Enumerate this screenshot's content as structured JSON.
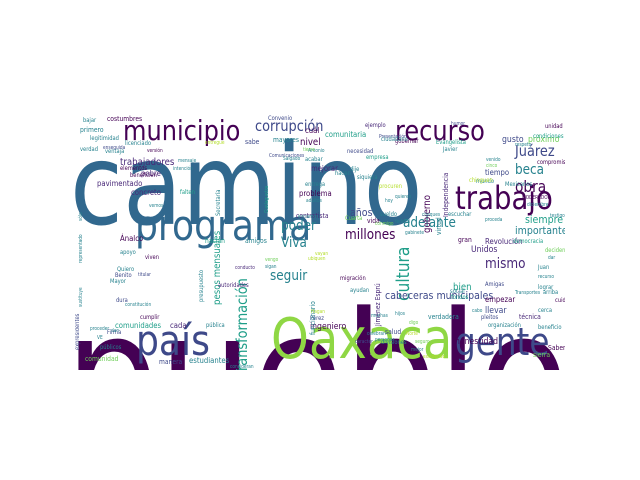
{
  "colors": {
    "dark_purple": "#440154",
    "indigo": "#482878",
    "slate_blue": "#3e4989",
    "blue": "#31688e",
    "teal_blue": "#26828e",
    "teal": "#1f9e89",
    "green": "#35b779",
    "light_green": "#6ece58",
    "lime": "#8fd744",
    "yellow_green": "#b5de2b",
    "yellow": "#fde725"
  },
  "words": [
    {
      "text": "pueblo",
      "color": "dark_purple",
      "vertical": false
    },
    {
      "text": "camino",
      "color": "blue",
      "vertical": false
    },
    {
      "text": "Oaxaca",
      "color": "lime",
      "vertical": false
    },
    {
      "text": "programa",
      "color": "blue",
      "vertical": false
    },
    {
      "text": "país",
      "color": "slate_blue",
      "vertical": false
    },
    {
      "text": "gente",
      "color": "slate_blue",
      "vertical": false
    },
    {
      "text": "recurso",
      "color": "dark_purple",
      "vertical": false
    },
    {
      "text": "municipio",
      "color": "dark_purple",
      "vertical": false
    },
    {
      "text": "trabajo",
      "color": "dark_purple",
      "vertical": false
    },
    {
      "text": "Transformación",
      "color": "teal",
      "vertical": true
    },
    {
      "text": "cultura",
      "color": "teal",
      "vertical": true
    },
    {
      "text": "corrupción",
      "color": "slate_blue",
      "vertical": false
    },
    {
      "text": "Juárez",
      "color": "slate_blue",
      "vertical": false
    },
    {
      "text": "beca",
      "color": "teal_blue",
      "vertical": false
    },
    {
      "text": "obra",
      "color": "dark_purple",
      "vertical": false
    },
    {
      "text": "adelante",
      "color": "teal_blue",
      "vertical": false
    },
    {
      "text": "millones",
      "color": "dark_purple",
      "vertical": false
    },
    {
      "text": "poder",
      "color": "teal_blue",
      "vertical": false
    },
    {
      "text": "Viva",
      "color": "teal_blue",
      "vertical": false
    },
    {
      "text": "seguir",
      "color": "teal_blue",
      "vertical": false
    },
    {
      "text": "mismo",
      "color": "indigo",
      "vertical": false
    },
    {
      "text": "años",
      "color": "slate_blue",
      "vertical": false
    },
    {
      "text": "importante",
      "color": "teal_blue",
      "vertical": false
    },
    {
      "text": "siempre",
      "color": "teal",
      "vertical": false
    },
    {
      "text": "cabeceras municipales",
      "color": "slate_blue",
      "vertical": false
    },
    {
      "text": "trabajadores",
      "color": "indigo",
      "vertical": false
    },
    {
      "text": "pesos mensuales",
      "color": "teal",
      "vertical": true
    },
    {
      "text": "honestidad",
      "color": "dark_purple",
      "vertical": false
    },
    {
      "text": "ingeniero",
      "color": "dark_purple",
      "vertical": false
    },
    {
      "text": "Unidos",
      "color": "indigo",
      "vertical": false
    },
    {
      "text": "gobierno",
      "color": "dark_purple",
      "vertical": true
    },
    {
      "text": "bien",
      "color": "teal",
      "vertical": false
    },
    {
      "text": "gusto",
      "color": "slate_blue",
      "vertical": false
    },
    {
      "text": "próximo",
      "color": "light_green",
      "vertical": false
    },
    {
      "text": "Revolución",
      "color": "indigo",
      "vertical": false
    },
    {
      "text": "cuál",
      "color": "dark_purple",
      "vertical": false
    },
    {
      "text": "nivel",
      "color": "dark_purple",
      "vertical": false
    },
    {
      "text": "comunitaria",
      "color": "teal",
      "vertical": false
    },
    {
      "text": "empezar",
      "color": "dark_purple",
      "vertical": false
    },
    {
      "text": "llevar",
      "color": "slate_blue",
      "vertical": false
    },
    {
      "text": "mejorar",
      "color": "indigo",
      "vertical": false
    },
    {
      "text": "concreto",
      "color": "indigo",
      "vertical": false
    },
    {
      "text": "pobre",
      "color": "indigo",
      "vertical": false
    },
    {
      "text": "pavimentado",
      "color": "indigo",
      "vertical": false
    },
    {
      "text": "Ánalco",
      "color": "dark_purple",
      "vertical": false
    },
    {
      "text": "comunidades",
      "color": "teal",
      "vertical": false
    },
    {
      "text": "cada",
      "color": "indigo",
      "vertical": false
    },
    {
      "text": "estudiantes",
      "color": "teal_blue",
      "vertical": false
    },
    {
      "text": "sierra",
      "color": "light_green",
      "vertical": false
    },
    {
      "text": "verdadera",
      "color": "teal_blue",
      "vertical": false
    },
    {
      "text": "Saben",
      "color": "dark_purple",
      "vertical": false
    },
    {
      "text": "técnica",
      "color": "indigo",
      "vertical": false
    },
    {
      "text": "organización",
      "color": "teal_blue",
      "vertical": false
    },
    {
      "text": "comunidad",
      "color": "light_green",
      "vertical": false
    },
    {
      "text": "manera",
      "color": "slate_blue",
      "vertical": false
    },
    {
      "text": "costumbres",
      "color": "dark_purple",
      "vertical": false
    },
    {
      "text": "primero",
      "color": "teal_blue",
      "vertical": false
    },
    {
      "text": "Convenio",
      "color": "slate_blue",
      "vertical": false
    },
    {
      "text": "compromiso",
      "color": "dark_purple",
      "vertical": false
    },
    {
      "text": "tiempo",
      "color": "slate_blue",
      "vertical": false
    },
    {
      "text": "mundo",
      "color": "teal_blue",
      "vertical": false
    },
    {
      "text": "problema",
      "color": "dark_purple",
      "vertical": false
    },
    {
      "text": "contratista",
      "color": "indigo",
      "vertical": false
    },
    {
      "text": "empresa",
      "color": "teal",
      "vertical": false
    },
    {
      "text": "Evangelista",
      "color": "teal",
      "vertical": false
    },
    {
      "text": "salud",
      "color": "slate_blue",
      "vertical": false
    },
    {
      "text": "apoyo",
      "color": "teal_blue",
      "vertical": false
    },
    {
      "text": "viven",
      "color": "dark_purple",
      "vertical": false
    },
    {
      "text": "Quiero",
      "color": "teal_blue",
      "vertical": false
    },
    {
      "text": "Mayor",
      "color": "teal_blue",
      "vertical": false
    },
    {
      "text": "Benito",
      "color": "slate_blue",
      "vertical": false
    },
    {
      "text": "dura",
      "color": "slate_blue",
      "vertical": false
    },
    {
      "text": "ayudan",
      "color": "teal_blue",
      "vertical": false
    },
    {
      "text": "migración",
      "color": "dark_purple",
      "vertical": false
    },
    {
      "text": "cumplir",
      "color": "dark_purple",
      "vertical": false
    },
    {
      "text": "social",
      "color": "teal_blue",
      "vertical": false
    },
    {
      "text": "Amigas",
      "color": "slate_blue",
      "vertical": false
    },
    {
      "text": "fondos",
      "color": "teal",
      "vertical": false
    },
    {
      "text": "Juan",
      "color": "teal_blue",
      "vertical": false
    },
    {
      "text": "cuida",
      "color": "dark_purple",
      "vertical": false
    },
    {
      "text": "cerca",
      "color": "teal_blue",
      "vertical": false
    },
    {
      "text": "beneficio",
      "color": "teal_blue",
      "vertical": false
    },
    {
      "text": "bajar",
      "color": "teal_blue",
      "vertical": false
    },
    {
      "text": "legitimidad",
      "color": "teal_blue",
      "vertical": false
    },
    {
      "text": "licenciado",
      "color": "teal_blue",
      "vertical": false
    },
    {
      "text": "elementos",
      "color": "dark_purple",
      "vertical": false
    },
    {
      "text": "entrega",
      "color": "teal_blue",
      "vertical": false
    },
    {
      "text": "necesidad",
      "color": "slate_blue",
      "vertical": false
    },
    {
      "text": "gobernar",
      "color": "dark_purple",
      "vertical": false
    },
    {
      "text": "hacen",
      "color": "teal_blue",
      "vertical": false
    },
    {
      "text": "dije",
      "color": "teal_blue",
      "vertical": false
    },
    {
      "text": "siquiera",
      "color": "teal_blue",
      "vertical": false
    },
    {
      "text": "acabar",
      "color": "teal_blue",
      "vertical": false
    },
    {
      "text": "sabe",
      "color": "slate_blue",
      "vertical": false
    },
    {
      "text": "mayores",
      "color": "teal_blue",
      "vertical": false
    },
    {
      "text": "escuchar",
      "color": "teal_blue",
      "vertical": false
    },
    {
      "text": "gran",
      "color": "dark_purple",
      "vertical": false
    },
    {
      "text": "vida",
      "color": "dark_purple",
      "vertical": false
    },
    {
      "text": "amigos",
      "color": "teal_blue",
      "vertical": false
    },
    {
      "text": "hacían",
      "color": "teal",
      "vertical": false
    },
    {
      "text": "falten",
      "color": "teal",
      "vertical": false
    },
    {
      "text": "conducto",
      "color": "indigo",
      "vertical": false
    },
    {
      "text": "pública",
      "color": "teal_blue",
      "vertical": false
    },
    {
      "text": "Pérez",
      "color": "slate_blue",
      "vertical": false
    },
    {
      "text": "pleitos",
      "color": "slate_blue",
      "vertical": false
    },
    {
      "text": "Independencia",
      "color": "indigo",
      "vertical": true
    },
    {
      "text": "Jiménez Esprú",
      "color": "indigo",
      "vertical": true
    },
    {
      "text": "funcionario",
      "color": "teal_blue",
      "vertical": true
    },
    {
      "text": "expresidentes",
      "color": "slate_blue",
      "vertical": true
    },
    {
      "text": "virtud",
      "color": "teal_blue",
      "vertical": true
    },
    {
      "text": "autoridades",
      "color": "indigo",
      "vertical": false
    },
    {
      "text": "Secretaría",
      "color": "teal_blue",
      "vertical": true
    },
    {
      "text": "presupuesto",
      "color": "teal_blue",
      "vertical": true
    },
    {
      "text": "Guelaguetza",
      "color": "teal",
      "vertical": true
    },
    {
      "text": "divisiones",
      "color": "teal_blue",
      "vertical": false
    },
    {
      "text": "caracter",
      "color": "slate_blue",
      "vertical": false
    },
    {
      "text": "Antonio",
      "color": "teal_blue",
      "vertical": false
    },
    {
      "text": "Presentación",
      "color": "slate_blue",
      "vertical": false
    },
    {
      "text": "deciden",
      "color": "light_green",
      "vertical": false
    },
    {
      "text": "lograr",
      "color": "teal_blue",
      "vertical": false
    },
    {
      "text": "arriba",
      "color": "teal_blue",
      "vertical": false
    },
    {
      "text": "Mexicanos",
      "color": "teal_blue",
      "vertical": false
    },
    {
      "text": "democracia",
      "color": "teal",
      "vertical": false
    },
    {
      "text": "ejemplo",
      "color": "indigo",
      "vertical": false
    },
    {
      "text": "unidad",
      "color": "dark_purple",
      "vertical": false
    },
    {
      "text": "condiciones",
      "color": "teal",
      "vertical": false
    },
    {
      "text": "respeto",
      "color": "teal_blue",
      "vertical": false
    },
    {
      "text": "procuren",
      "color": "yellow_green",
      "vertical": false
    },
    {
      "text": "chinguen",
      "color": "yellow_green",
      "vertical": false
    },
    {
      "text": "ventaja",
      "color": "teal_blue",
      "vertical": false
    },
    {
      "text": "beneficien",
      "color": "dark_purple",
      "vertical": false
    },
    {
      "text": "mensaje",
      "color": "teal_blue",
      "vertical": false
    },
    {
      "text": "Javier",
      "color": "teal_blue",
      "vertical": false
    },
    {
      "text": "sueldo",
      "color": "teal_blue",
      "vertical": false
    },
    {
      "text": "Cuarta",
      "color": "light_green",
      "vertical": false
    },
    {
      "text": "Comunicaciones",
      "color": "slate_blue",
      "vertical": false
    },
    {
      "text": "verdad",
      "color": "teal_blue",
      "vertical": false
    },
    {
      "text": "versión",
      "color": "dark_purple",
      "vertical": false
    },
    {
      "text": "Transportes",
      "color": "teal_blue",
      "vertical": false
    },
    {
      "text": "personas",
      "color": "teal_blue",
      "vertical": false
    },
    {
      "text": "hijos",
      "color": "teal_blue",
      "vertical": false
    },
    {
      "text": "Firma",
      "color": "slate_blue",
      "vertical": false
    },
    {
      "text": "públicos",
      "color": "teal_blue",
      "vertical": false
    },
    {
      "text": "mejor",
      "color": "teal_blue",
      "vertical": false
    },
    {
      "text": "cabo",
      "color": "teal_blue",
      "vertical": false
    },
    {
      "text": "tierra",
      "color": "light_green",
      "vertical": false
    },
    {
      "text": "ciudadano",
      "color": "teal_blue",
      "vertical": false
    },
    {
      "text": "titular",
      "color": "slate_blue",
      "vertical": false
    },
    {
      "text": "enseguida",
      "color": "slate_blue",
      "vertical": false
    },
    {
      "text": "sólo",
      "color": "teal_blue",
      "vertical": true
    },
    {
      "text": "representado",
      "color": "teal_blue",
      "vertical": true
    },
    {
      "text": "sustituye",
      "color": "teal_blue",
      "vertical": true
    },
    {
      "text": "quieren",
      "color": "teal_blue",
      "vertical": false
    },
    {
      "text": "intención",
      "color": "teal_blue",
      "vertical": false
    },
    {
      "text": "humor",
      "color": "slate_blue",
      "vertical": false
    },
    {
      "text": "vayan",
      "color": "yellow_green",
      "vertical": false
    },
    {
      "text": "ubiquen",
      "color": "yellow_green",
      "vertical": false
    },
    {
      "text": "entregue",
      "color": "yellow_green",
      "vertical": false
    },
    {
      "text": "iniciamos",
      "color": "teal_blue",
      "vertical": false
    },
    {
      "text": "muchas",
      "color": "teal_blue",
      "vertical": false
    },
    {
      "text": "dar",
      "color": "teal_blue",
      "vertical": false
    },
    {
      "text": "testigo",
      "color": "teal_blue",
      "vertical": false
    },
    {
      "text": "MODERADOR",
      "color": "dark_purple",
      "vertical": false
    },
    {
      "text": "diciembre",
      "color": "teal_blue",
      "vertical": false
    },
    {
      "text": "proceder",
      "color": "teal_blue",
      "vertical": false
    },
    {
      "text": "proceda",
      "color": "teal_blue",
      "vertical": false
    },
    {
      "text": "adultos",
      "color": "teal_blue",
      "vertical": false
    },
    {
      "text": "cheques",
      "color": "teal_blue",
      "vertical": false
    },
    {
      "text": "conmigo",
      "color": "light_green",
      "vertical": false
    },
    {
      "text": "sigan",
      "color": "teal_blue",
      "vertical": false
    },
    {
      "text": "vemos",
      "color": "teal_blue",
      "vertical": false
    },
    {
      "text": "consideran",
      "color": "teal_blue",
      "vertical": false
    },
    {
      "text": "constitución",
      "color": "teal_blue",
      "vertical": false
    },
    {
      "text": "Hagan",
      "color": "yellow_green",
      "vertical": false
    },
    {
      "text": "celebran",
      "color": "teal_blue",
      "vertical": false
    },
    {
      "text": "Norte",
      "color": "yellow_green",
      "vertical": false
    },
    {
      "text": "seguro",
      "color": "light_green",
      "vertical": false
    },
    {
      "text": "existiendo",
      "color": "yellow_green",
      "vertical": false
    },
    {
      "text": "digo",
      "color": "light_green",
      "vertical": false
    },
    {
      "text": "gabinete",
      "color": "teal_blue",
      "vertical": false
    },
    {
      "text": "federal",
      "color": "teal_blue",
      "vertical": false
    },
    {
      "text": "hoy",
      "color": "teal_blue",
      "vertical": false
    },
    {
      "text": "vengo",
      "color": "light_green",
      "vertical": false
    },
    {
      "text": "venido",
      "color": "teal_blue",
      "vertical": false
    },
    {
      "text": "cinco",
      "color": "light_green",
      "vertical": false
    },
    {
      "text": "dan",
      "color": "teal_blue",
      "vertical": false
    },
    {
      "text": "VE",
      "color": "teal_blue",
      "vertical": false
    },
    {
      "text": "Salgado",
      "color": "teal_blue",
      "vertical": false
    },
    {
      "text": "recurso",
      "color": "teal_blue",
      "vertical": false
    }
  ]
}
